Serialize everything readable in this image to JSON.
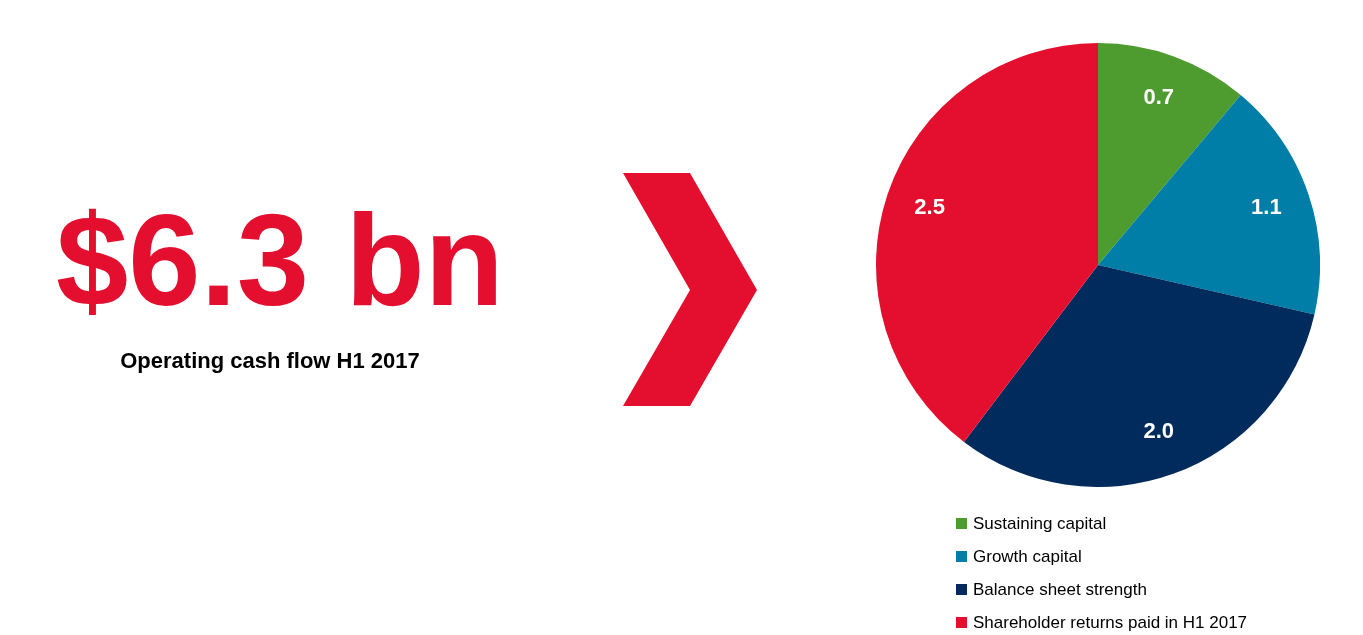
{
  "chart_data": {
    "type": "pie",
    "title": "$6.3 bn",
    "subtitle": "Operating cash flow H1 2017",
    "categories": [
      "Sustaining capital",
      "Growth capital",
      "Balance sheet strength",
      "Shareholder returns paid in H1 2017"
    ],
    "values": [
      0.7,
      1.1,
      2.0,
      2.5
    ],
    "colors": [
      "#4e9c2f",
      "#007ea7",
      "#002b5c",
      "#e40f2f"
    ],
    "value_labels": [
      "0.7",
      "1.1",
      "2.0",
      "2.5"
    ],
    "legend": "bottom"
  }
}
